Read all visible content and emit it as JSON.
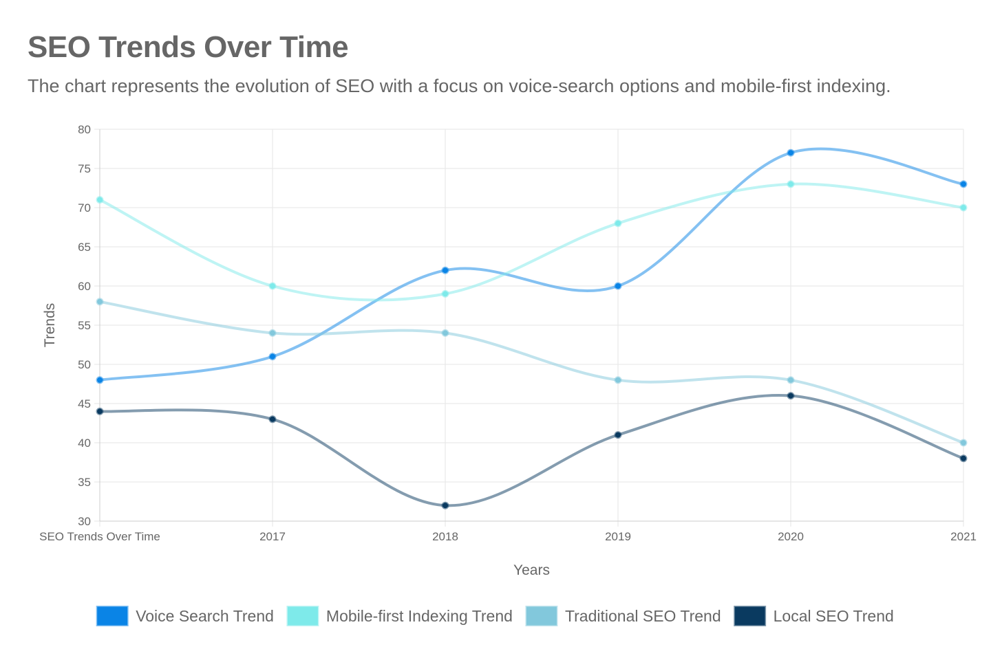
{
  "title": "SEO Trends Over Time",
  "subtitle": "The chart represents the evolution of SEO with a focus on voice-search options and mobile-first indexing.",
  "chart_data": {
    "type": "line",
    "categories": [
      "SEO Trends Over Time",
      "2017",
      "2018",
      "2019",
      "2020",
      "2021"
    ],
    "xlabel": "Years",
    "ylabel": "Trends",
    "ylim": [
      30,
      80
    ],
    "yticks": [
      30,
      35,
      40,
      45,
      50,
      55,
      60,
      65,
      70,
      75,
      80
    ],
    "grid": true,
    "legend_position": "bottom",
    "series": [
      {
        "name": "Voice Search Trend",
        "color": "#0a84e6",
        "values": [
          48,
          51,
          62,
          60,
          77,
          73
        ]
      },
      {
        "name": "Mobile-first Indexing Trend",
        "color": "#7eeaea",
        "values": [
          71,
          60,
          59,
          68,
          73,
          70
        ]
      },
      {
        "name": "Traditional SEO Trend",
        "color": "#82c8dc",
        "values": [
          58,
          54,
          54,
          48,
          48,
          40
        ]
      },
      {
        "name": "Local SEO Trend",
        "color": "#0a3a60",
        "values": [
          44,
          43,
          32,
          41,
          46,
          38
        ]
      }
    ]
  }
}
